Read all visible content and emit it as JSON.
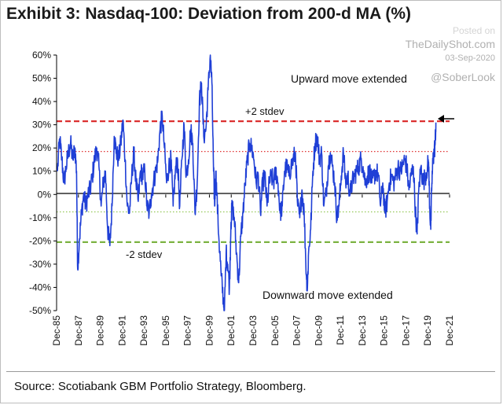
{
  "chart_data": {
    "type": "line",
    "title": "Exhibit 3: Nasdaq-100: Deviation from 200-d MA (%)",
    "xlabel": "",
    "ylabel": "",
    "xlim": [
      1985.92,
      2021.92
    ],
    "ylim": [
      -50,
      60
    ],
    "y_ticks": [
      -50,
      -40,
      -30,
      -20,
      -10,
      0,
      10,
      20,
      30,
      40,
      50,
      60
    ],
    "y_tick_labels": [
      "-50%",
      "-40%",
      "-30%",
      "-20%",
      "-10%",
      "0%",
      "10%",
      "20%",
      "30%",
      "40%",
      "50%",
      "60%"
    ],
    "x_tick_years": [
      1985.92,
      1987.92,
      1989.92,
      1991.92,
      1993.92,
      1995.92,
      1997.92,
      1999.92,
      2001.92,
      2003.92,
      2005.92,
      2007.92,
      2009.92,
      2011.92,
      2013.92,
      2015.92,
      2017.92,
      2019.92,
      2021.92
    ],
    "x_tick_labels": [
      "Dec-85",
      "Dec-87",
      "Dec-89",
      "Dec-91",
      "Dec-93",
      "Dec-95",
      "Dec-97",
      "Dec-99",
      "Dec-01",
      "Dec-03",
      "Dec-05",
      "Dec-07",
      "Dec-09",
      "Dec-11",
      "Dec-13",
      "Dec-15",
      "Dec-17",
      "Dec-19",
      "Dec-21"
    ],
    "series": [
      {
        "name": "Nasdaq-100 deviation from 200-d MA",
        "color": "#1f3fd6",
        "points": [
          [
            1986.0,
            10
          ],
          [
            1986.2,
            24
          ],
          [
            1986.4,
            15
          ],
          [
            1986.6,
            5
          ],
          [
            1986.8,
            12
          ],
          [
            1987.0,
            18
          ],
          [
            1987.2,
            22
          ],
          [
            1987.4,
            15
          ],
          [
            1987.6,
            20
          ],
          [
            1987.75,
            10
          ],
          [
            1987.85,
            -32
          ],
          [
            1988.0,
            -20
          ],
          [
            1988.2,
            -8
          ],
          [
            1988.4,
            0
          ],
          [
            1988.6,
            -5
          ],
          [
            1988.8,
            0
          ],
          [
            1989.0,
            2
          ],
          [
            1989.2,
            8
          ],
          [
            1989.4,
            15
          ],
          [
            1989.6,
            20
          ],
          [
            1989.8,
            12
          ],
          [
            1990.0,
            -5
          ],
          [
            1990.2,
            5
          ],
          [
            1990.4,
            10
          ],
          [
            1990.6,
            -15
          ],
          [
            1990.8,
            -22
          ],
          [
            1991.0,
            -5
          ],
          [
            1991.2,
            25
          ],
          [
            1991.4,
            18
          ],
          [
            1991.6,
            15
          ],
          [
            1991.8,
            22
          ],
          [
            1992.0,
            32
          ],
          [
            1992.2,
            15
          ],
          [
            1992.4,
            -5
          ],
          [
            1992.6,
            -8
          ],
          [
            1992.8,
            8
          ],
          [
            1993.0,
            18
          ],
          [
            1993.2,
            5
          ],
          [
            1993.4,
            -3
          ],
          [
            1993.6,
            10
          ],
          [
            1993.8,
            8
          ],
          [
            1994.0,
            10
          ],
          [
            1994.2,
            -5
          ],
          [
            1994.4,
            -8
          ],
          [
            1994.6,
            0
          ],
          [
            1994.8,
            5
          ],
          [
            1995.0,
            10
          ],
          [
            1995.2,
            15
          ],
          [
            1995.4,
            28
          ],
          [
            1995.6,
            34
          ],
          [
            1995.8,
            20
          ],
          [
            1996.0,
            5
          ],
          [
            1996.2,
            12
          ],
          [
            1996.4,
            15
          ],
          [
            1996.6,
            -5
          ],
          [
            1996.8,
            10
          ],
          [
            1997.0,
            15
          ],
          [
            1997.2,
            -5
          ],
          [
            1997.4,
            15
          ],
          [
            1997.6,
            30
          ],
          [
            1997.8,
            8
          ],
          [
            1998.0,
            15
          ],
          [
            1998.2,
            28
          ],
          [
            1998.4,
            22
          ],
          [
            1998.6,
            -8
          ],
          [
            1998.8,
            5
          ],
          [
            1999.0,
            40
          ],
          [
            1999.2,
            48
          ],
          [
            1999.4,
            25
          ],
          [
            1999.6,
            28
          ],
          [
            1999.8,
            45
          ],
          [
            2000.0,
            60
          ],
          [
            2000.15,
            48
          ],
          [
            2000.3,
            10
          ],
          [
            2000.4,
            -5
          ],
          [
            2000.5,
            10
          ],
          [
            2000.6,
            0
          ],
          [
            2000.8,
            -20
          ],
          [
            2001.0,
            -35
          ],
          [
            2001.2,
            -45
          ],
          [
            2001.3,
            -50
          ],
          [
            2001.45,
            -25
          ],
          [
            2001.6,
            -30
          ],
          [
            2001.75,
            -40
          ],
          [
            2001.9,
            -12
          ],
          [
            2002.0,
            -5
          ],
          [
            2002.2,
            -10
          ],
          [
            2002.4,
            -25
          ],
          [
            2002.6,
            -38
          ],
          [
            2002.8,
            -18
          ],
          [
            2003.0,
            -8
          ],
          [
            2003.2,
            5
          ],
          [
            2003.4,
            15
          ],
          [
            2003.6,
            22
          ],
          [
            2003.8,
            20
          ],
          [
            2004.0,
            15
          ],
          [
            2004.2,
            5
          ],
          [
            2004.4,
            8
          ],
          [
            2004.6,
            -8
          ],
          [
            2004.8,
            5
          ],
          [
            2005.0,
            8
          ],
          [
            2005.2,
            -5
          ],
          [
            2005.4,
            5
          ],
          [
            2005.6,
            8
          ],
          [
            2005.8,
            5
          ],
          [
            2006.0,
            10
          ],
          [
            2006.2,
            5
          ],
          [
            2006.4,
            -8
          ],
          [
            2006.6,
            -5
          ],
          [
            2006.8,
            10
          ],
          [
            2007.0,
            12
          ],
          [
            2007.2,
            8
          ],
          [
            2007.4,
            12
          ],
          [
            2007.6,
            15
          ],
          [
            2007.8,
            18
          ],
          [
            2008.0,
            -5
          ],
          [
            2008.2,
            -10
          ],
          [
            2008.4,
            2
          ],
          [
            2008.6,
            -8
          ],
          [
            2008.8,
            -35
          ],
          [
            2008.9,
            -40
          ],
          [
            2009.0,
            -25
          ],
          [
            2009.2,
            -15
          ],
          [
            2009.4,
            10
          ],
          [
            2009.6,
            22
          ],
          [
            2009.8,
            25
          ],
          [
            2010.0,
            15
          ],
          [
            2010.2,
            18
          ],
          [
            2010.4,
            -5
          ],
          [
            2010.6,
            0
          ],
          [
            2010.8,
            12
          ],
          [
            2011.0,
            18
          ],
          [
            2011.2,
            12
          ],
          [
            2011.4,
            5
          ],
          [
            2011.6,
            -10
          ],
          [
            2011.8,
            -5
          ],
          [
            2012.0,
            8
          ],
          [
            2012.2,
            18
          ],
          [
            2012.4,
            5
          ],
          [
            2012.6,
            8
          ],
          [
            2012.8,
            0
          ],
          [
            2013.0,
            5
          ],
          [
            2013.2,
            8
          ],
          [
            2013.4,
            10
          ],
          [
            2013.6,
            12
          ],
          [
            2013.8,
            15
          ],
          [
            2014.0,
            12
          ],
          [
            2014.2,
            5
          ],
          [
            2014.4,
            8
          ],
          [
            2014.6,
            10
          ],
          [
            2014.8,
            5
          ],
          [
            2015.0,
            8
          ],
          [
            2015.2,
            10
          ],
          [
            2015.4,
            8
          ],
          [
            2015.6,
            -5
          ],
          [
            2015.8,
            5
          ],
          [
            2016.0,
            -8
          ],
          [
            2016.2,
            -3
          ],
          [
            2016.4,
            5
          ],
          [
            2016.6,
            8
          ],
          [
            2016.8,
            5
          ],
          [
            2017.0,
            8
          ],
          [
            2017.2,
            12
          ],
          [
            2017.4,
            10
          ],
          [
            2017.6,
            12
          ],
          [
            2017.8,
            15
          ],
          [
            2018.0,
            12
          ],
          [
            2018.2,
            2
          ],
          [
            2018.4,
            8
          ],
          [
            2018.6,
            12
          ],
          [
            2018.8,
            -8
          ],
          [
            2018.95,
            -17
          ],
          [
            2019.1,
            2
          ],
          [
            2019.3,
            12
          ],
          [
            2019.5,
            5
          ],
          [
            2019.7,
            8
          ],
          [
            2019.9,
            12
          ],
          [
            2020.0,
            14
          ],
          [
            2020.1,
            -5
          ],
          [
            2020.2,
            -15
          ],
          [
            2020.3,
            5
          ],
          [
            2020.4,
            15
          ],
          [
            2020.5,
            18
          ],
          [
            2020.6,
            22
          ],
          [
            2020.67,
            31
          ]
        ]
      }
    ],
    "reference_lines": [
      {
        "name": "+2 stdev",
        "value": 31.5,
        "color": "#d92424",
        "style": "dashed-heavy"
      },
      {
        "name": "+1 stdev",
        "value": 18.5,
        "color": "#e03030",
        "style": "dotted"
      },
      {
        "name": "-1 stdev",
        "value": -7.5,
        "color": "#8bc34a",
        "style": "dotted"
      },
      {
        "name": "-2 stdev",
        "value": -20.5,
        "color": "#7cb342",
        "style": "dashed-heavy"
      }
    ],
    "annotations": {
      "plus2": "+2 stdev",
      "minus2": "-2 stdev",
      "upward": "Upward move extended",
      "downward": "Downward move extended"
    },
    "grid": false,
    "legend": "none"
  },
  "source_text": "Source: Scotiabank GBM Portfolio Strategy, Bloomberg.",
  "watermark": {
    "posted": "Posted on",
    "site": "TheDailyShot.com",
    "date": "03-Sep-2020",
    "handle": "@SoberLook"
  }
}
